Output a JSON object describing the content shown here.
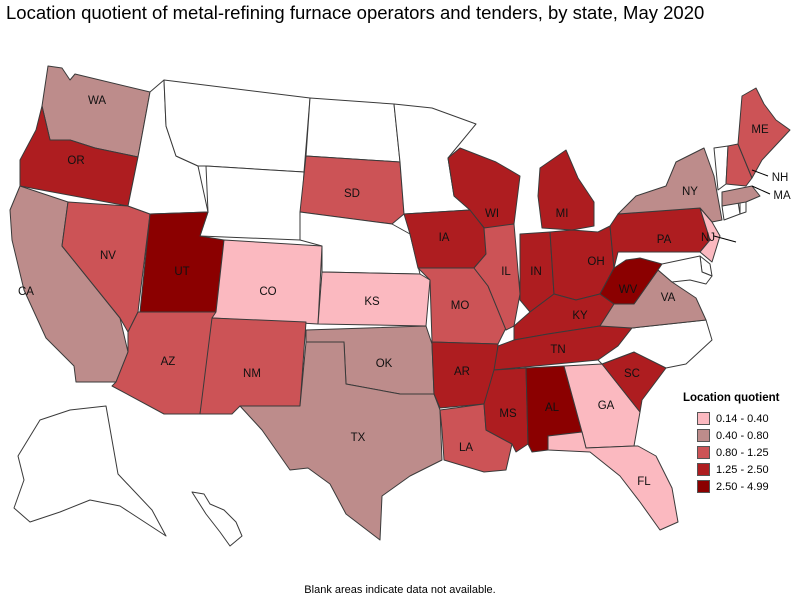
{
  "title": "Location quotient of metal-refining furnace operators and tenders, by state, May 2020",
  "footnote": "Blank areas indicate data not available.",
  "legend": {
    "title": "Location quotient",
    "bins": [
      {
        "label": "0.14 - 0.40",
        "color": "#fbb9c0"
      },
      {
        "label": "0.40 - 0.80",
        "color": "#bd8c8b"
      },
      {
        "label": "0.80 - 1.25",
        "color": "#cc5356"
      },
      {
        "label": "1.25 - 2.50",
        "color": "#ae1d20"
      },
      {
        "label": "2.50 - 4.99",
        "color": "#8b0000"
      }
    ]
  },
  "blank_color": "#ffffff",
  "states": [
    {
      "abbr": "WA",
      "label": "WA",
      "bin": 1
    },
    {
      "abbr": "OR",
      "label": "OR",
      "bin": 3
    },
    {
      "abbr": "CA",
      "label": "CA",
      "bin": 1
    },
    {
      "abbr": "NV",
      "label": "NV",
      "bin": 2
    },
    {
      "abbr": "ID",
      "label": "",
      "bin": null
    },
    {
      "abbr": "MT",
      "label": "",
      "bin": null
    },
    {
      "abbr": "WY",
      "label": "",
      "bin": null
    },
    {
      "abbr": "UT",
      "label": "UT",
      "bin": 4
    },
    {
      "abbr": "AZ",
      "label": "AZ",
      "bin": 2
    },
    {
      "abbr": "CO",
      "label": "CO",
      "bin": 0
    },
    {
      "abbr": "NM",
      "label": "NM",
      "bin": 2
    },
    {
      "abbr": "ND",
      "label": "",
      "bin": null
    },
    {
      "abbr": "SD",
      "label": "SD",
      "bin": 2
    },
    {
      "abbr": "NE",
      "label": "",
      "bin": null
    },
    {
      "abbr": "KS",
      "label": "KS",
      "bin": 0
    },
    {
      "abbr": "OK",
      "label": "OK",
      "bin": 1
    },
    {
      "abbr": "TX",
      "label": "TX",
      "bin": 1
    },
    {
      "abbr": "MN",
      "label": "",
      "bin": null
    },
    {
      "abbr": "IA",
      "label": "IA",
      "bin": 3
    },
    {
      "abbr": "MO",
      "label": "MO",
      "bin": 2
    },
    {
      "abbr": "AR",
      "label": "AR",
      "bin": 3
    },
    {
      "abbr": "LA",
      "label": "LA",
      "bin": 2
    },
    {
      "abbr": "WI",
      "label": "WI",
      "bin": 3
    },
    {
      "abbr": "IL",
      "label": "IL",
      "bin": 2
    },
    {
      "abbr": "MI",
      "label": "MI",
      "bin": 3
    },
    {
      "abbr": "IN",
      "label": "IN",
      "bin": 3
    },
    {
      "abbr": "OH",
      "label": "OH",
      "bin": 3
    },
    {
      "abbr": "KY",
      "label": "KY",
      "bin": 3
    },
    {
      "abbr": "TN",
      "label": "TN",
      "bin": 3
    },
    {
      "abbr": "MS",
      "label": "MS",
      "bin": 3
    },
    {
      "abbr": "AL",
      "label": "AL",
      "bin": 4
    },
    {
      "abbr": "GA",
      "label": "GA",
      "bin": 0
    },
    {
      "abbr": "FL",
      "label": "FL",
      "bin": 0
    },
    {
      "abbr": "SC",
      "label": "SC",
      "bin": 3
    },
    {
      "abbr": "NC",
      "label": "",
      "bin": null
    },
    {
      "abbr": "VA",
      "label": "VA",
      "bin": 1
    },
    {
      "abbr": "WV",
      "label": "WV",
      "bin": 4
    },
    {
      "abbr": "PA",
      "label": "PA",
      "bin": 3
    },
    {
      "abbr": "NY",
      "label": "NY",
      "bin": 1
    },
    {
      "abbr": "NJ",
      "label": "NJ",
      "bin": 0
    },
    {
      "abbr": "DE",
      "label": "",
      "bin": null
    },
    {
      "abbr": "MD",
      "label": "",
      "bin": null
    },
    {
      "abbr": "CT",
      "label": "",
      "bin": null
    },
    {
      "abbr": "RI",
      "label": "",
      "bin": null
    },
    {
      "abbr": "MA",
      "label": "MA",
      "bin": 1
    },
    {
      "abbr": "VT",
      "label": "",
      "bin": null
    },
    {
      "abbr": "NH",
      "label": "NH",
      "bin": 2
    },
    {
      "abbr": "ME",
      "label": "ME",
      "bin": 2
    },
    {
      "abbr": "AK",
      "label": "",
      "bin": null
    },
    {
      "abbr": "HI",
      "label": "",
      "bin": null
    }
  ]
}
